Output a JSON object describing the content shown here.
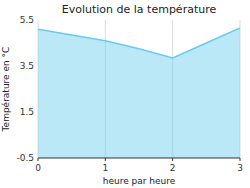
{
  "chart_data": {
    "type": "area",
    "title": "Evolution de la température",
    "xlabel": "heure par heure",
    "ylabel": "Température en °C",
    "x": [
      0,
      0.5,
      1.0,
      1.5,
      2.0,
      2.5,
      3.0
    ],
    "values": [
      5.1,
      4.85,
      4.6,
      4.25,
      3.85,
      4.5,
      5.15
    ],
    "color": "#66ccee",
    "xlim": [
      0,
      3
    ],
    "ylim": [
      -0.5,
      5.5
    ],
    "xticks": [
      0,
      1,
      2,
      3
    ],
    "yticks": [
      -0.5,
      1.5,
      3.5,
      5.5
    ],
    "grid": true
  }
}
